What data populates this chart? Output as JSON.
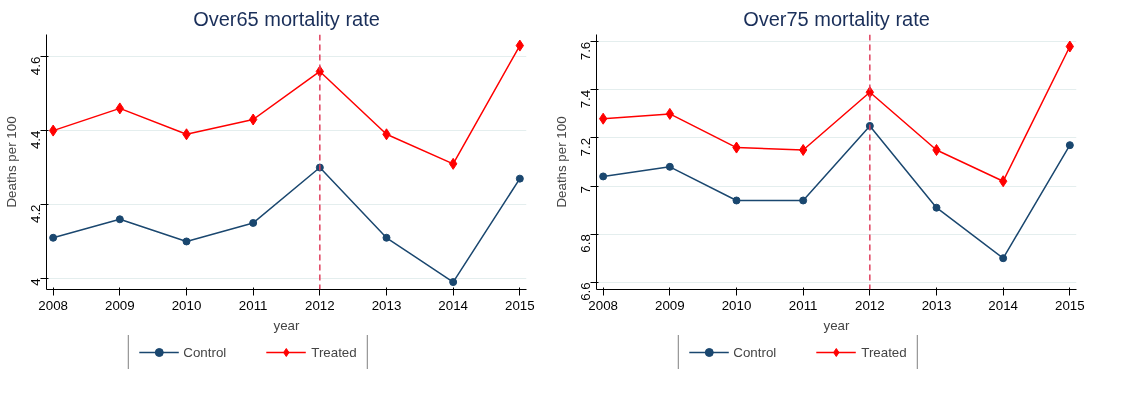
{
  "chart_data": [
    {
      "type": "line",
      "title": "Over65 mortality rate",
      "xlabel": "year",
      "ylabel": "Deaths per 100",
      "x": [
        2008,
        2009,
        2010,
        2011,
        2012,
        2013,
        2014,
        2015
      ],
      "xlim": [
        2007.9,
        2015.1
      ],
      "xticks": [
        2008,
        2009,
        2010,
        2011,
        2012,
        2013,
        2014,
        2015
      ],
      "ylim": [
        3.97,
        4.66
      ],
      "yticks": [
        {
          "value": 4,
          "label": "4"
        },
        4.2,
        4.4,
        4.6
      ],
      "grid": "y",
      "legend": "bottom",
      "series": [
        {
          "name": "Control",
          "color": "#1a476f",
          "marker": "circle",
          "values": [
            4.11,
            4.16,
            4.1,
            4.15,
            4.3,
            4.11,
            3.99,
            4.27
          ]
        },
        {
          "name": "Treated",
          "color": "#ff0000",
          "marker": "diamond",
          "values": [
            4.4,
            4.46,
            4.39,
            4.43,
            4.56,
            4.39,
            4.31,
            4.63
          ]
        }
      ],
      "ref_lines": [
        {
          "axis": "x",
          "value": 2012,
          "color": "#e0405e",
          "line_style": "dashed"
        }
      ]
    },
    {
      "type": "line",
      "title": "Over75 mortality rate",
      "xlabel": "year",
      "ylabel": "Deaths per 100",
      "x": [
        2008,
        2009,
        2010,
        2011,
        2012,
        2013,
        2014,
        2015
      ],
      "xlim": [
        2007.9,
        2015.1
      ],
      "xticks": [
        2008,
        2009,
        2010,
        2011,
        2012,
        2013,
        2014,
        2015
      ],
      "ylim": [
        6.57,
        7.63
      ],
      "yticks": [
        6.6,
        6.8,
        {
          "value": 7,
          "label": "7"
        },
        7.2,
        7.4,
        7.6
      ],
      "grid": "y",
      "legend": "bottom",
      "series": [
        {
          "name": "Control",
          "color": "#1a476f",
          "marker": "circle",
          "values": [
            7.04,
            7.08,
            6.94,
            6.94,
            7.25,
            6.91,
            6.7,
            7.17
          ]
        },
        {
          "name": "Treated",
          "color": "#ff0000",
          "marker": "diamond",
          "values": [
            7.28,
            7.3,
            7.16,
            7.15,
            7.39,
            7.15,
            7.02,
            7.58
          ]
        }
      ],
      "ref_lines": [
        {
          "axis": "x",
          "value": 2012,
          "color": "#e0405e",
          "line_style": "dashed"
        }
      ]
    }
  ]
}
